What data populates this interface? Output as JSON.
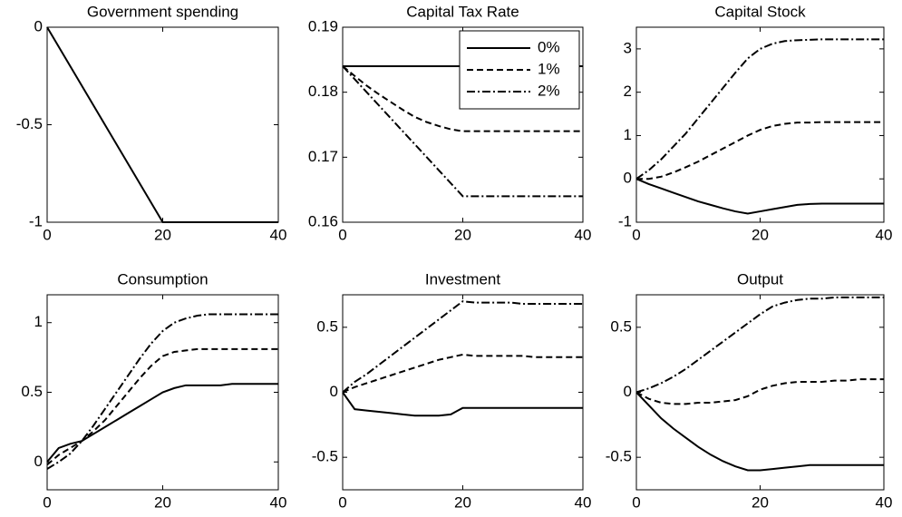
{
  "chart_data": [
    {
      "type": "line",
      "title": "Government spending",
      "x": [
        0,
        2,
        4,
        6,
        8,
        10,
        12,
        14,
        16,
        18,
        20,
        22,
        24,
        26,
        28,
        30,
        32,
        34,
        36,
        38,
        40
      ],
      "xlim": [
        0,
        40
      ],
      "xticks": [
        0,
        20,
        40
      ],
      "ylim": [
        -1,
        0
      ],
      "yticks": [
        -1,
        -0.5,
        0
      ],
      "series": [
        {
          "color": "#000000",
          "dash": "solid",
          "values": [
            0,
            -0.1,
            -0.2,
            -0.3,
            -0.4,
            -0.5,
            -0.6,
            -0.7,
            -0.8,
            -0.9,
            -1,
            -1,
            -1,
            -1,
            -1,
            -1,
            -1,
            -1,
            -1,
            -1,
            -1
          ]
        }
      ]
    },
    {
      "type": "line",
      "title": "Capital Tax Rate",
      "x": [
        0,
        2,
        4,
        6,
        8,
        10,
        12,
        14,
        16,
        18,
        20,
        22,
        24,
        26,
        28,
        30,
        32,
        34,
        36,
        38,
        40
      ],
      "xlim": [
        0,
        40
      ],
      "xticks": [
        0,
        20,
        40
      ],
      "ylim": [
        0.16,
        0.19
      ],
      "yticks": [
        0.16,
        0.17,
        0.18,
        0.19
      ],
      "legend": "upper right",
      "series": [
        {
          "name": "0%",
          "color": "#000000",
          "dash": "solid",
          "values": [
            0.184,
            0.184,
            0.184,
            0.184,
            0.184,
            0.184,
            0.184,
            0.184,
            0.184,
            0.184,
            0.184,
            0.184,
            0.184,
            0.184,
            0.184,
            0.184,
            0.184,
            0.184,
            0.184,
            0.184,
            0.184
          ]
        },
        {
          "name": "1%",
          "color": "#000000",
          "dash": "dashed",
          "values": [
            0.184,
            0.1825,
            0.181,
            0.1797,
            0.1785,
            0.1773,
            0.1762,
            0.1754,
            0.1748,
            0.1743,
            0.174,
            0.174,
            0.174,
            0.174,
            0.174,
            0.174,
            0.174,
            0.174,
            0.174,
            0.174,
            0.174
          ]
        },
        {
          "name": "2%",
          "color": "#000000",
          "dash": "dashdot",
          "values": [
            0.184,
            0.182,
            0.18,
            0.178,
            0.176,
            0.174,
            0.172,
            0.17,
            0.168,
            0.166,
            0.164,
            0.164,
            0.164,
            0.164,
            0.164,
            0.164,
            0.164,
            0.164,
            0.164,
            0.164,
            0.164
          ]
        }
      ]
    },
    {
      "type": "line",
      "title": "Capital Stock",
      "x": [
        0,
        2,
        4,
        6,
        8,
        10,
        12,
        14,
        16,
        18,
        20,
        22,
        24,
        26,
        28,
        30,
        32,
        34,
        36,
        38,
        40
      ],
      "xlim": [
        0,
        40
      ],
      "xticks": [
        0,
        20,
        40
      ],
      "ylim": [
        -1,
        3.5
      ],
      "yticks": [
        -1,
        0,
        1,
        2,
        3
      ],
      "series": [
        {
          "color": "#000000",
          "dash": "solid",
          "values": [
            0,
            -0.12,
            -0.22,
            -0.32,
            -0.42,
            -0.52,
            -0.6,
            -0.68,
            -0.75,
            -0.8,
            -0.75,
            -0.7,
            -0.65,
            -0.6,
            -0.58,
            -0.57,
            -0.57,
            -0.57,
            -0.57,
            -0.57,
            -0.57
          ]
        },
        {
          "color": "#000000",
          "dash": "dashed",
          "values": [
            0,
            0,
            0.05,
            0.15,
            0.27,
            0.4,
            0.55,
            0.7,
            0.85,
            1.0,
            1.13,
            1.22,
            1.27,
            1.3,
            1.3,
            1.31,
            1.31,
            1.31,
            1.31,
            1.31,
            1.31
          ]
        },
        {
          "color": "#000000",
          "dash": "dashdot",
          "values": [
            0,
            0.2,
            0.45,
            0.75,
            1.05,
            1.4,
            1.75,
            2.1,
            2.45,
            2.78,
            3.0,
            3.12,
            3.18,
            3.2,
            3.21,
            3.22,
            3.22,
            3.22,
            3.22,
            3.22,
            3.22
          ]
        }
      ]
    },
    {
      "type": "line",
      "title": "Consumption",
      "x": [
        0,
        2,
        4,
        6,
        8,
        10,
        12,
        14,
        16,
        18,
        20,
        22,
        24,
        26,
        28,
        30,
        32,
        34,
        36,
        38,
        40
      ],
      "xlim": [
        0,
        40
      ],
      "xticks": [
        0,
        20,
        40
      ],
      "ylim": [
        -0.2,
        1.2
      ],
      "yticks": [
        0,
        0.5,
        1
      ],
      "series": [
        {
          "color": "#000000",
          "dash": "solid",
          "values": [
            0,
            0.1,
            0.13,
            0.15,
            0.2,
            0.25,
            0.3,
            0.35,
            0.4,
            0.45,
            0.5,
            0.53,
            0.55,
            0.55,
            0.55,
            0.55,
            0.56,
            0.56,
            0.56,
            0.56,
            0.56
          ]
        },
        {
          "color": "#000000",
          "dash": "dashed",
          "values": [
            -0.02,
            0.05,
            0.1,
            0.15,
            0.22,
            0.3,
            0.4,
            0.5,
            0.6,
            0.69,
            0.76,
            0.79,
            0.8,
            0.81,
            0.81,
            0.81,
            0.81,
            0.81,
            0.81,
            0.81,
            0.81
          ]
        },
        {
          "color": "#000000",
          "dash": "dashdot",
          "values": [
            -0.05,
            0,
            0.06,
            0.15,
            0.26,
            0.38,
            0.5,
            0.62,
            0.74,
            0.85,
            0.94,
            1.0,
            1.03,
            1.05,
            1.06,
            1.06,
            1.06,
            1.06,
            1.06,
            1.06,
            1.06
          ]
        }
      ]
    },
    {
      "type": "line",
      "title": "Investment",
      "x": [
        0,
        2,
        4,
        6,
        8,
        10,
        12,
        14,
        16,
        18,
        20,
        22,
        24,
        26,
        28,
        30,
        32,
        34,
        36,
        38,
        40
      ],
      "xlim": [
        0,
        40
      ],
      "xticks": [
        0,
        20,
        40
      ],
      "ylim": [
        -0.75,
        0.75
      ],
      "yticks": [
        -0.5,
        0,
        0.5
      ],
      "series": [
        {
          "color": "#000000",
          "dash": "solid",
          "values": [
            0,
            -0.13,
            -0.14,
            -0.15,
            -0.16,
            -0.17,
            -0.18,
            -0.18,
            -0.18,
            -0.17,
            -0.12,
            -0.12,
            -0.12,
            -0.12,
            -0.12,
            -0.12,
            -0.12,
            -0.12,
            -0.12,
            -0.12,
            -0.12
          ]
        },
        {
          "color": "#000000",
          "dash": "dashed",
          "values": [
            0,
            0.04,
            0.07,
            0.1,
            0.13,
            0.16,
            0.19,
            0.22,
            0.25,
            0.27,
            0.29,
            0.28,
            0.28,
            0.28,
            0.28,
            0.28,
            0.27,
            0.27,
            0.27,
            0.27,
            0.27
          ]
        },
        {
          "color": "#000000",
          "dash": "dashdot",
          "values": [
            0,
            0.08,
            0.14,
            0.21,
            0.28,
            0.35,
            0.42,
            0.49,
            0.56,
            0.63,
            0.7,
            0.69,
            0.69,
            0.69,
            0.69,
            0.68,
            0.68,
            0.68,
            0.68,
            0.68,
            0.68
          ]
        }
      ]
    },
    {
      "type": "line",
      "title": "Output",
      "x": [
        0,
        2,
        4,
        6,
        8,
        10,
        12,
        14,
        16,
        18,
        20,
        22,
        24,
        26,
        28,
        30,
        32,
        34,
        36,
        38,
        40
      ],
      "xlim": [
        0,
        40
      ],
      "xticks": [
        0,
        20,
        40
      ],
      "ylim": [
        -0.75,
        0.75
      ],
      "yticks": [
        -0.5,
        0,
        0.5
      ],
      "series": [
        {
          "color": "#000000",
          "dash": "solid",
          "values": [
            0,
            -0.1,
            -0.2,
            -0.28,
            -0.35,
            -0.42,
            -0.48,
            -0.53,
            -0.57,
            -0.6,
            -0.6,
            -0.59,
            -0.58,
            -0.57,
            -0.56,
            -0.56,
            -0.56,
            -0.56,
            -0.56,
            -0.56,
            -0.56
          ]
        },
        {
          "color": "#000000",
          "dash": "dashed",
          "values": [
            0,
            -0.05,
            -0.08,
            -0.09,
            -0.09,
            -0.08,
            -0.08,
            -0.07,
            -0.06,
            -0.03,
            0.02,
            0.05,
            0.07,
            0.08,
            0.08,
            0.08,
            0.09,
            0.09,
            0.1,
            0.1,
            0.1
          ]
        },
        {
          "color": "#000000",
          "dash": "dashdot",
          "values": [
            0,
            0.03,
            0.07,
            0.12,
            0.18,
            0.25,
            0.32,
            0.39,
            0.46,
            0.53,
            0.6,
            0.66,
            0.69,
            0.71,
            0.72,
            0.72,
            0.73,
            0.73,
            0.73,
            0.73,
            0.73
          ]
        }
      ]
    }
  ]
}
